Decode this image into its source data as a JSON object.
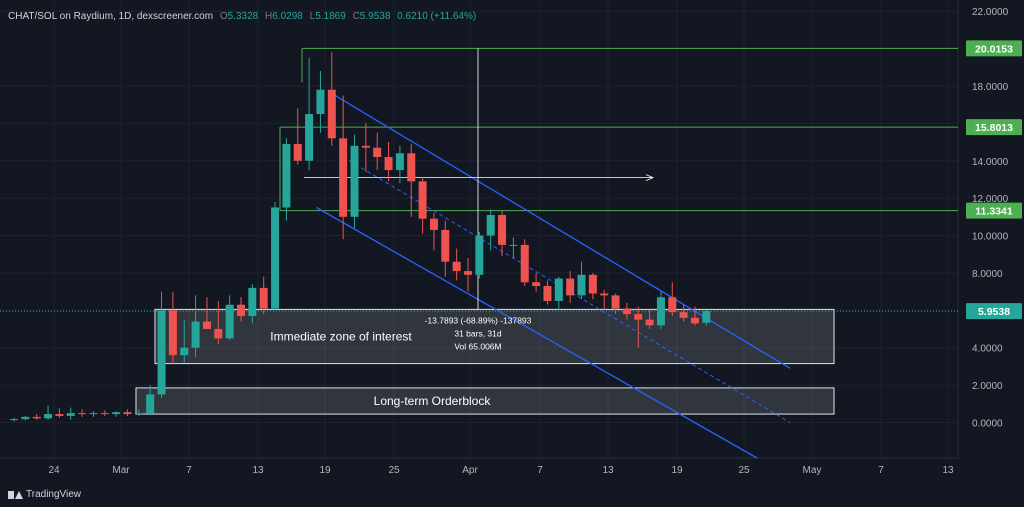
{
  "legend": {
    "symbol": "CHAT/SOL on Raydium, 1D, dexscreener.com",
    "o_label": "O",
    "o": "5.3328",
    "h_label": "H",
    "h": "6.0298",
    "l_label": "L",
    "l": "5.1869",
    "c_label": "C",
    "c": "5.9538",
    "change": "0.6210 (+11.64%)"
  },
  "branding": "TradingView",
  "colors": {
    "background": "#131722",
    "up": "#26a69a",
    "down": "#ef5350",
    "channel": "#2962ff",
    "levels": "#4caf50",
    "grid": "#1e222d",
    "axis_text": "#b2b5be"
  },
  "chart_data": {
    "type": "candlestick",
    "x_ticks": [
      "24",
      "Mar",
      "7",
      "13",
      "19",
      "25",
      "Apr",
      "7",
      "13",
      "19",
      "25",
      "May",
      "7",
      "13"
    ],
    "y_ticks": [
      "22.0000",
      "18.0000",
      "16.0000",
      "14.0000",
      "12.0000",
      "10.0000",
      "8.0000",
      "6.0000",
      "4.0000",
      "2.0000",
      "0.0000"
    ],
    "ylim": [
      -1.9,
      22.6
    ],
    "grid": true,
    "candles": [
      {
        "o": 0.15,
        "h": 0.25,
        "l": 0.05,
        "c": 0.18
      },
      {
        "o": 0.18,
        "h": 0.35,
        "l": 0.1,
        "c": 0.3
      },
      {
        "o": 0.3,
        "h": 0.45,
        "l": 0.15,
        "c": 0.22
      },
      {
        "o": 0.22,
        "h": 0.9,
        "l": 0.15,
        "c": 0.45
      },
      {
        "o": 0.45,
        "h": 0.75,
        "l": 0.25,
        "c": 0.35
      },
      {
        "o": 0.35,
        "h": 0.8,
        "l": 0.15,
        "c": 0.5
      },
      {
        "o": 0.5,
        "h": 0.7,
        "l": 0.3,
        "c": 0.45
      },
      {
        "o": 0.45,
        "h": 0.6,
        "l": 0.3,
        "c": 0.5
      },
      {
        "o": 0.5,
        "h": 0.65,
        "l": 0.35,
        "c": 0.45
      },
      {
        "o": 0.45,
        "h": 0.6,
        "l": 0.3,
        "c": 0.55
      },
      {
        "o": 0.55,
        "h": 0.7,
        "l": 0.35,
        "c": 0.45
      },
      {
        "o": 0.45,
        "h": 0.7,
        "l": 0.35,
        "c": 0.5
      },
      {
        "o": 0.5,
        "h": 2.0,
        "l": 0.4,
        "c": 1.5
      },
      {
        "o": 1.5,
        "h": 7.0,
        "l": 1.3,
        "c": 6.0
      },
      {
        "o": 6.0,
        "h": 7.0,
        "l": 3.1,
        "c": 3.6
      },
      {
        "o": 3.6,
        "h": 5.5,
        "l": 3.2,
        "c": 4.0
      },
      {
        "o": 4.0,
        "h": 6.8,
        "l": 3.5,
        "c": 5.4
      },
      {
        "o": 5.4,
        "h": 6.7,
        "l": 5.0,
        "c": 5.0
      },
      {
        "o": 5.0,
        "h": 6.5,
        "l": 4.2,
        "c": 4.5
      },
      {
        "o": 4.5,
        "h": 6.8,
        "l": 4.4,
        "c": 6.3
      },
      {
        "o": 6.3,
        "h": 6.7,
        "l": 5.4,
        "c": 5.7
      },
      {
        "o": 5.7,
        "h": 7.4,
        "l": 5.3,
        "c": 7.2
      },
      {
        "o": 7.2,
        "h": 7.8,
        "l": 5.8,
        "c": 6.1
      },
      {
        "o": 6.1,
        "h": 11.8,
        "l": 6.0,
        "c": 11.5
      },
      {
        "o": 11.5,
        "h": 15.2,
        "l": 10.8,
        "c": 14.9
      },
      {
        "o": 14.9,
        "h": 16.8,
        "l": 13.8,
        "c": 14.0
      },
      {
        "o": 14.0,
        "h": 19.5,
        "l": 13.5,
        "c": 16.5
      },
      {
        "o": 16.5,
        "h": 18.8,
        "l": 15.5,
        "c": 17.8
      },
      {
        "o": 17.8,
        "h": 19.8,
        "l": 14.8,
        "c": 15.2
      },
      {
        "o": 15.2,
        "h": 17.5,
        "l": 9.8,
        "c": 11.0
      },
      {
        "o": 11.0,
        "h": 15.4,
        "l": 10.4,
        "c": 14.8
      },
      {
        "o": 14.8,
        "h": 16.0,
        "l": 13.4,
        "c": 14.7
      },
      {
        "o": 14.7,
        "h": 15.5,
        "l": 13.5,
        "c": 14.2
      },
      {
        "o": 14.2,
        "h": 15.0,
        "l": 12.9,
        "c": 13.5
      },
      {
        "o": 13.5,
        "h": 14.8,
        "l": 12.8,
        "c": 14.4
      },
      {
        "o": 14.4,
        "h": 14.9,
        "l": 11.0,
        "c": 12.9
      },
      {
        "o": 12.9,
        "h": 13.1,
        "l": 10.1,
        "c": 10.9
      },
      {
        "o": 10.9,
        "h": 11.2,
        "l": 9.2,
        "c": 10.3
      },
      {
        "o": 10.3,
        "h": 10.8,
        "l": 7.8,
        "c": 8.6
      },
      {
        "o": 8.6,
        "h": 9.3,
        "l": 7.6,
        "c": 8.1
      },
      {
        "o": 8.1,
        "h": 8.8,
        "l": 7.0,
        "c": 7.9
      },
      {
        "o": 7.9,
        "h": 10.2,
        "l": 7.7,
        "c": 10.0
      },
      {
        "o": 10.0,
        "h": 11.4,
        "l": 9.2,
        "c": 11.1
      },
      {
        "o": 11.1,
        "h": 11.3,
        "l": 8.9,
        "c": 9.5
      },
      {
        "o": 9.5,
        "h": 9.9,
        "l": 8.8,
        "c": 9.5
      },
      {
        "o": 9.5,
        "h": 9.8,
        "l": 7.3,
        "c": 7.5
      },
      {
        "o": 7.5,
        "h": 8.0,
        "l": 7.0,
        "c": 7.3
      },
      {
        "o": 7.3,
        "h": 7.6,
        "l": 6.3,
        "c": 6.5
      },
      {
        "o": 6.5,
        "h": 7.8,
        "l": 6.0,
        "c": 7.7
      },
      {
        "o": 7.7,
        "h": 8.1,
        "l": 6.4,
        "c": 6.8
      },
      {
        "o": 6.8,
        "h": 8.6,
        "l": 6.6,
        "c": 7.9
      },
      {
        "o": 7.9,
        "h": 8.0,
        "l": 6.6,
        "c": 6.9
      },
      {
        "o": 6.9,
        "h": 7.1,
        "l": 6.0,
        "c": 6.8
      },
      {
        "o": 6.8,
        "h": 6.9,
        "l": 5.8,
        "c": 6.1
      },
      {
        "o": 6.1,
        "h": 6.4,
        "l": 5.5,
        "c": 5.8
      },
      {
        "o": 5.8,
        "h": 6.2,
        "l": 4.0,
        "c": 5.5
      },
      {
        "o": 5.5,
        "h": 6.0,
        "l": 5.0,
        "c": 5.2
      },
      {
        "o": 5.2,
        "h": 7.0,
        "l": 5.0,
        "c": 6.7
      },
      {
        "o": 6.7,
        "h": 7.5,
        "l": 5.7,
        "c": 5.9
      },
      {
        "o": 5.9,
        "h": 6.3,
        "l": 5.4,
        "c": 5.6
      },
      {
        "o": 5.6,
        "h": 6.2,
        "l": 5.2,
        "c": 5.3
      },
      {
        "o": 5.3328,
        "h": 6.0298,
        "l": 5.1869,
        "c": 5.9538
      }
    ],
    "horizontal_levels": [
      20.0153,
      15.8013,
      11.3341
    ],
    "level_labels": [
      "20.0153",
      "15.8013",
      "11.3341"
    ],
    "last_price": 5.9538,
    "last_price_label": "5.9538",
    "zones": [
      {
        "label": "Immediate zone of interest",
        "top": 6.05,
        "bottom": 3.15
      },
      {
        "label": "Long-term Orderblock",
        "top": 1.85,
        "bottom": 0.45
      }
    ],
    "measure": {
      "line1": "-13.7893 (-68.89%) -137893",
      "line2": "31 bars, 31d",
      "line3": "Vol 65.006M"
    }
  }
}
